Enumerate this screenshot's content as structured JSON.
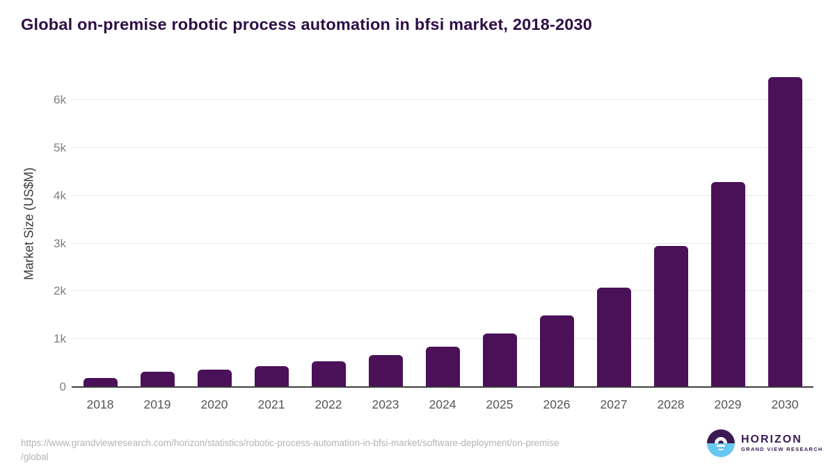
{
  "page": {
    "title": "Global on-premise robotic process automation in bfsi market, 2018-2030"
  },
  "chart_data": {
    "type": "bar",
    "title": "Global on-premise robotic process automation in bfsi market, 2018-2030",
    "categories": [
      "2018",
      "2019",
      "2020",
      "2021",
      "2022",
      "2023",
      "2024",
      "2025",
      "2026",
      "2027",
      "2028",
      "2029",
      "2030"
    ],
    "values": [
      190,
      320,
      360,
      440,
      540,
      675,
      850,
      1120,
      1500,
      2080,
      2955,
      4295,
      6480
    ],
    "series_name": "Market Size",
    "xlabel": "",
    "ylabel": "Market Size (US$M)",
    "ylim": [
      0,
      6690
    ],
    "yticks": [
      {
        "value": 0,
        "label": "0"
      },
      {
        "value": 1000,
        "label": "1k"
      },
      {
        "value": 2000,
        "label": "2k"
      },
      {
        "value": 3000,
        "label": "3k"
      },
      {
        "value": 4000,
        "label": "4k"
      },
      {
        "value": 5000,
        "label": "5k"
      },
      {
        "value": 6000,
        "label": "6k"
      }
    ],
    "grid": true,
    "legend": "none",
    "bar_color": "#4a1158"
  },
  "footer": {
    "source_line1": "https://www.grandviewresearch.com/horizon/statistics/robotic-process-automation-in-bfsi-market/software-deployment/on-premise",
    "source_line2": "/global",
    "logo_title": "HORIZON",
    "logo_subtitle": "GRAND VIEW RESEARCH"
  },
  "colors": {
    "title_text": "#2e0d45",
    "bar": "#4a1158",
    "gridline": "#e7e7e7",
    "axis_line": "#3d3d3d",
    "y_tick_text": "#7d7d7d",
    "x_tick_text": "#555555",
    "axis_title_text": "#3a3a3a",
    "source_text": "#b3b3b3",
    "logo_purple": "#3b1a52",
    "logo_blue": "#69c8f1"
  }
}
